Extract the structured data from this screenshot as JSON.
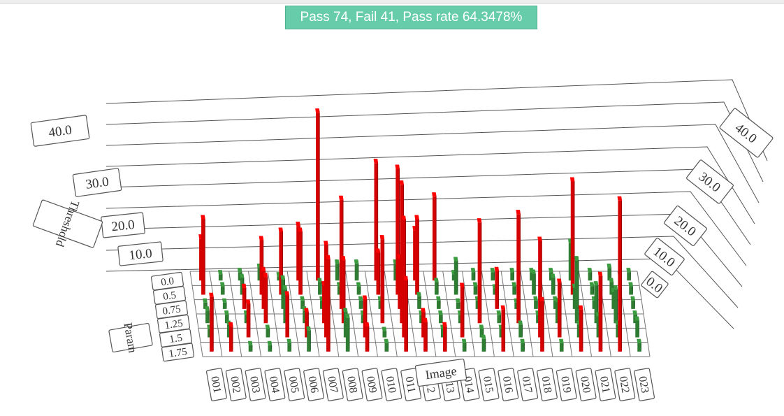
{
  "status": {
    "pass": 74,
    "fail": 41,
    "pass_rate": "64.3478%",
    "text": "Pass 74, Fail 41, Pass rate 64.3478%"
  },
  "chart_data": {
    "type": "bar3d",
    "title": "",
    "x_axis": {
      "label": "Image",
      "categories": [
        "001",
        "002",
        "003",
        "004",
        "005",
        "006",
        "007",
        "008",
        "009",
        "010",
        "011",
        "012",
        "013",
        "014",
        "015",
        "016",
        "017",
        "018",
        "019",
        "020",
        "021",
        "022",
        "023"
      ]
    },
    "y_axis": {
      "label": "Param",
      "categories": [
        "0.0",
        "0.5",
        "0.75",
        "1.25",
        "1.5",
        "1.75"
      ]
    },
    "z_axis": {
      "label": "Threshold",
      "ticks": [
        "10.0",
        "20.0",
        "30.0",
        "40.0"
      ],
      "back_ticks": [
        "0.0",
        "10.0",
        "20.0",
        "30.0",
        "40.0"
      ],
      "range": [
        0,
        45
      ]
    },
    "colors": {
      "pass": "#2e7d32",
      "fail": "#d50000"
    },
    "values": [
      [
        10,
        18,
        1.5,
        3,
        2,
        13
      ],
      [
        1.5,
        2,
        1.5,
        2,
        3,
        6
      ],
      [
        2,
        4,
        5,
        2,
        8,
        1.5
      ],
      [
        3,
        13,
        9,
        11,
        2,
        1.5
      ],
      [
        1,
        15,
        7,
        8,
        10,
        2
      ],
      [
        13,
        15,
        2,
        3,
        6,
        5
      ],
      [
        40,
        3,
        2,
        9,
        22,
        22
      ],
      [
        4,
        2,
        26,
        15,
        6,
        8
      ],
      [
        4,
        2,
        2,
        2,
        9,
        6
      ],
      [
        28,
        10,
        2,
        20,
        1.5,
        2
      ],
      [
        4,
        30,
        12,
        33,
        28,
        17
      ],
      [
        12,
        18,
        3,
        2,
        6,
        7
      ],
      [
        20,
        3,
        2,
        2,
        2,
        6
      ],
      [
        1.5,
        8,
        1.5,
        2,
        12,
        2
      ],
      [
        2,
        2,
        2,
        24,
        2,
        3
      ],
      [
        2,
        1.5,
        9,
        2,
        2,
        10
      ],
      [
        2,
        2,
        1.5,
        26,
        3,
        2
      ],
      [
        2,
        5,
        2,
        2,
        23,
        12
      ],
      [
        2,
        4,
        2,
        5,
        13,
        2
      ],
      [
        9,
        27,
        5,
        15,
        3,
        10
      ],
      [
        2,
        2,
        2,
        9,
        5,
        18
      ],
      [
        3,
        3,
        4,
        8,
        3,
        36
      ],
      [
        2,
        2,
        2,
        2,
        4,
        2
      ]
    ],
    "outcomes": [
      [
        "fail",
        "fail",
        "pass",
        "pass",
        "pass",
        "fail"
      ],
      [
        "pass",
        "pass",
        "pass",
        "pass",
        "pass",
        "fail"
      ],
      [
        "pass",
        "pass",
        "fail",
        "pass",
        "fail",
        "pass"
      ],
      [
        "pass",
        "fail",
        "fail",
        "fail",
        "pass",
        "pass"
      ],
      [
        "pass",
        "fail",
        "pass",
        "pass",
        "fail",
        "pass"
      ],
      [
        "fail",
        "fail",
        "pass",
        "pass",
        "fail",
        "pass"
      ],
      [
        "fail",
        "pass",
        "pass",
        "fail",
        "fail",
        "fail"
      ],
      [
        "pass",
        "pass",
        "fail",
        "fail",
        "pass",
        "pass"
      ],
      [
        "pass",
        "pass",
        "pass",
        "pass",
        "fail",
        "fail"
      ],
      [
        "fail",
        "fail",
        "pass",
        "fail",
        "pass",
        "pass"
      ],
      [
        "pass",
        "fail",
        "fail",
        "fail",
        "fail",
        "fail"
      ],
      [
        "fail",
        "fail",
        "pass",
        "pass",
        "fail",
        "fail"
      ],
      [
        "fail",
        "pass",
        "pass",
        "pass",
        "pass",
        "fail"
      ],
      [
        "pass",
        "pass",
        "pass",
        "pass",
        "fail",
        "pass"
      ],
      [
        "pass",
        "pass",
        "pass",
        "fail",
        "pass",
        "pass"
      ],
      [
        "pass",
        "pass",
        "fail",
        "pass",
        "pass",
        "fail"
      ],
      [
        "pass",
        "pass",
        "pass",
        "fail",
        "pass",
        "pass"
      ],
      [
        "pass",
        "pass",
        "pass",
        "pass",
        "fail",
        "fail"
      ],
      [
        "pass",
        "pass",
        "pass",
        "pass",
        "fail",
        "pass"
      ],
      [
        "pass",
        "fail",
        "pass",
        "pass",
        "pass",
        "fail"
      ],
      [
        "pass",
        "pass",
        "pass",
        "pass",
        "pass",
        "fail"
      ],
      [
        "pass",
        "pass",
        "pass",
        "pass",
        "pass",
        "fail"
      ],
      [
        "pass",
        "pass",
        "pass",
        "pass",
        "pass",
        "pass"
      ]
    ]
  }
}
